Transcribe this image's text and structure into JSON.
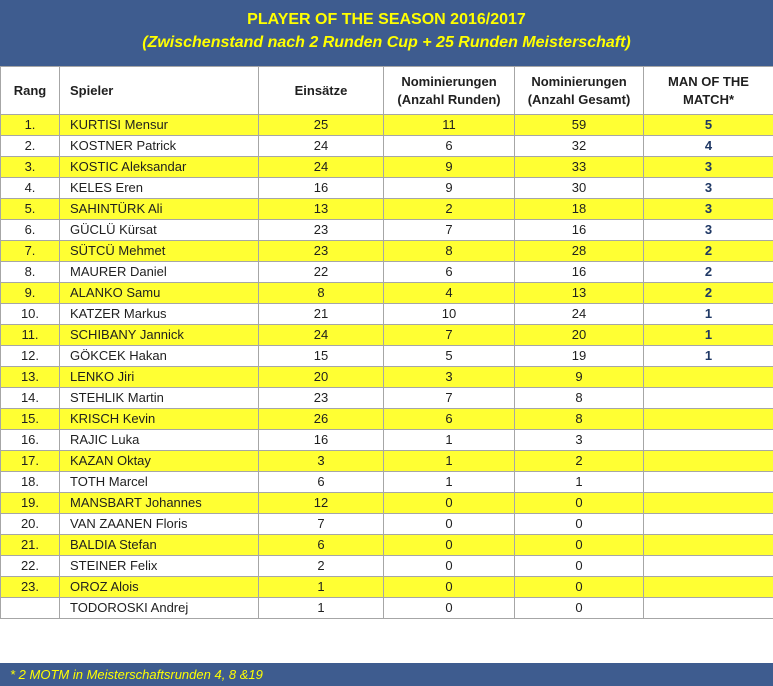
{
  "title": "PLAYER OF THE SEASON 2016/2017",
  "subtitle": "(Zwischenstand nach 2 Runden Cup + 25 Runden Meisterschaft)",
  "columns": {
    "rang": "Rang",
    "spieler": "Spieler",
    "einsaetze": "Einsätze",
    "nom_runden_1": "Nominierungen",
    "nom_runden_2": "(Anzahl Runden)",
    "nom_gesamt_1": "Nominierungen",
    "nom_gesamt_2": "(Anzahl Gesamt)",
    "motm_1": "MAN OF THE",
    "motm_2": "MATCH*"
  },
  "rows": [
    {
      "rang": "1.",
      "name": "KURTISI Mensur",
      "einsaetze": "25",
      "runden": "11",
      "gesamt": "59",
      "motm": "5",
      "highlight": true
    },
    {
      "rang": "2.",
      "name": "KOSTNER Patrick",
      "einsaetze": "24",
      "runden": "6",
      "gesamt": "32",
      "motm": "4",
      "highlight": false
    },
    {
      "rang": "3.",
      "name": "KOSTIC Aleksandar",
      "einsaetze": "24",
      "runden": "9",
      "gesamt": "33",
      "motm": "3",
      "highlight": true
    },
    {
      "rang": "4.",
      "name": "KELES Eren",
      "einsaetze": "16",
      "runden": "9",
      "gesamt": "30",
      "motm": "3",
      "highlight": false
    },
    {
      "rang": "5.",
      "name": "SAHINTÜRK Ali",
      "einsaetze": "13",
      "runden": "2",
      "gesamt": "18",
      "motm": "3",
      "highlight": true
    },
    {
      "rang": "6.",
      "name": "GÜCLÜ Kürsat",
      "einsaetze": "23",
      "runden": "7",
      "gesamt": "16",
      "motm": "3",
      "highlight": false
    },
    {
      "rang": "7.",
      "name": "SÜTCÜ Mehmet",
      "einsaetze": "23",
      "runden": "8",
      "gesamt": "28",
      "motm": "2",
      "highlight": true
    },
    {
      "rang": "8.",
      "name": "MAURER Daniel",
      "einsaetze": "22",
      "runden": "6",
      "gesamt": "16",
      "motm": "2",
      "highlight": false
    },
    {
      "rang": "9.",
      "name": "ALANKO Samu",
      "einsaetze": "8",
      "runden": "4",
      "gesamt": "13",
      "motm": "2",
      "highlight": true
    },
    {
      "rang": "10.",
      "name": "KATZER Markus",
      "einsaetze": "21",
      "runden": "10",
      "gesamt": "24",
      "motm": "1",
      "highlight": false
    },
    {
      "rang": "11.",
      "name": "SCHIBANY Jannick",
      "einsaetze": "24",
      "runden": "7",
      "gesamt": "20",
      "motm": "1",
      "highlight": true
    },
    {
      "rang": "12.",
      "name": "GÖKCEK Hakan",
      "einsaetze": "15",
      "runden": "5",
      "gesamt": "19",
      "motm": "1",
      "highlight": false
    },
    {
      "rang": "13.",
      "name": "LENKO Jiri",
      "einsaetze": "20",
      "runden": "3",
      "gesamt": "9",
      "motm": "",
      "highlight": true
    },
    {
      "rang": "14.",
      "name": "STEHLIK Martin",
      "einsaetze": "23",
      "runden": "7",
      "gesamt": "8",
      "motm": "",
      "highlight": false
    },
    {
      "rang": "15.",
      "name": "KRISCH Kevin",
      "einsaetze": "26",
      "runden": "6",
      "gesamt": "8",
      "motm": "",
      "highlight": true
    },
    {
      "rang": "16.",
      "name": "RAJIC Luka",
      "einsaetze": "16",
      "runden": "1",
      "gesamt": "3",
      "motm": "",
      "highlight": false
    },
    {
      "rang": "17.",
      "name": "KAZAN Oktay",
      "einsaetze": "3",
      "runden": "1",
      "gesamt": "2",
      "motm": "",
      "highlight": true
    },
    {
      "rang": "18.",
      "name": "TOTH Marcel",
      "einsaetze": "6",
      "runden": "1",
      "gesamt": "1",
      "motm": "",
      "highlight": false
    },
    {
      "rang": "19.",
      "name": "MANSBART Johannes",
      "einsaetze": "12",
      "runden": "0",
      "gesamt": "0",
      "motm": "",
      "highlight": true
    },
    {
      "rang": "20.",
      "name": "VAN ZAANEN Floris",
      "einsaetze": "7",
      "runden": "0",
      "gesamt": "0",
      "motm": "",
      "highlight": false
    },
    {
      "rang": "21.",
      "name": "BALDIA Stefan",
      "einsaetze": "6",
      "runden": "0",
      "gesamt": "0",
      "motm": "",
      "highlight": true
    },
    {
      "rang": "22.",
      "name": "STEINER Felix",
      "einsaetze": "2",
      "runden": "0",
      "gesamt": "0",
      "motm": "",
      "highlight": false
    },
    {
      "rang": "23.",
      "name": "OROZ Alois",
      "einsaetze": "1",
      "runden": "0",
      "gesamt": "0",
      "motm": "",
      "highlight": true
    },
    {
      "rang": "",
      "name": "TODOROSKI Andrej",
      "einsaetze": "1",
      "runden": "0",
      "gesamt": "0",
      "motm": "",
      "highlight": false
    }
  ],
  "footnote": "* 2 MOTM in Meisterschaftsrunden 4, 8 &19",
  "colors": {
    "header_bg": "#3E5C8F",
    "title_text": "#FFFF00",
    "row_highlight": "#FFFF33",
    "motm_text": "#1F3864"
  }
}
